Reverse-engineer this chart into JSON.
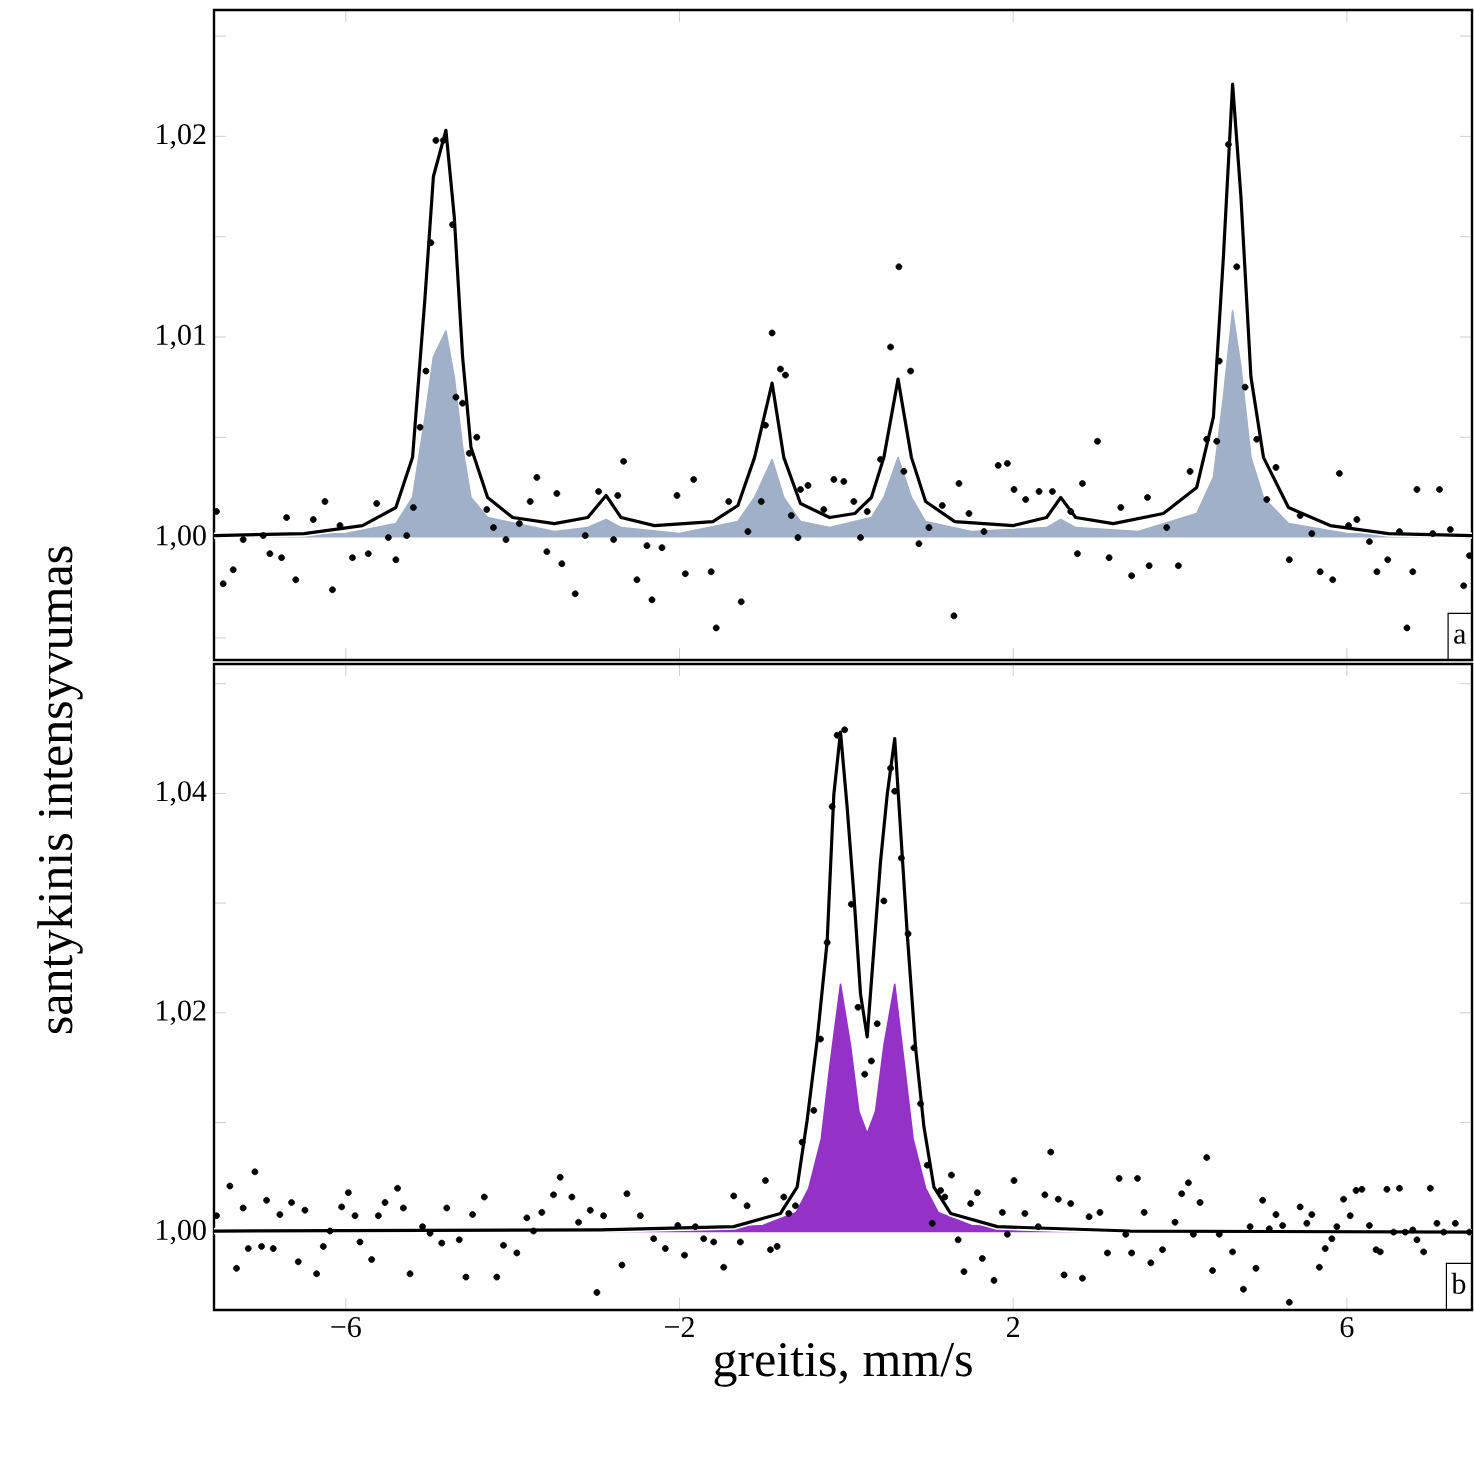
{
  "chart_data": [
    {
      "type": "line",
      "ylabel": "santykinis intensyvumas",
      "annotations": [
        "a"
      ],
      "tick_labels": "y",
      "xlim": [
        -7.58,
        7.5
      ],
      "ylim": [
        0.9939,
        1.0263
      ],
      "xticks": [
        {
          "value": -6,
          "label": null
        },
        {
          "value": -2,
          "label": null
        },
        {
          "value": 2,
          "label": null
        },
        {
          "value": 6,
          "label": null
        }
      ],
      "yticks": [
        {
          "value": 0.995,
          "label": null
        },
        {
          "value": 1.0,
          "label": "1,00"
        },
        {
          "value": 1.005,
          "label": null
        },
        {
          "value": 1.01,
          "label": "1,01"
        },
        {
          "value": 1.015,
          "label": null
        },
        {
          "value": 1.02,
          "label": "1,02"
        },
        {
          "value": 1.025,
          "label": null
        }
      ],
      "series": [
        {
          "type": "area",
          "color": "#9fb0c8",
          "x": [
            -7.58,
            -6,
            -5.4,
            -5.2,
            -5.05,
            -4.95,
            -4.8,
            -4.7,
            -4.6,
            -4.5,
            -4.3,
            -3.5,
            -3.1,
            -2.88,
            -2.7,
            -2.0,
            -1.3,
            -1.1,
            -0.89,
            -0.75,
            -0.55,
            -0.2,
            0.3,
            0.45,
            0.62,
            0.78,
            0.95,
            1.5,
            2.4,
            2.57,
            2.75,
            3.5,
            4.2,
            4.4,
            4.52,
            4.63,
            4.73,
            4.85,
            5.0,
            5.3,
            6.0,
            7.5
          ],
          "values": [
            1.0,
            1.0002,
            1.0007,
            1.002,
            1.006,
            1.009,
            1.0103,
            1.008,
            1.0045,
            1.002,
            1.001,
            1.0003,
            1.0005,
            1.0009,
            1.0005,
            1.0002,
            1.0008,
            1.002,
            1.0039,
            1.002,
            1.0008,
            1.0005,
            1.001,
            1.002,
            1.004,
            1.002,
            1.0008,
            1.0003,
            1.0005,
            1.0009,
            1.0005,
            1.0003,
            1.0012,
            1.003,
            1.007,
            1.0113,
            1.0085,
            1.004,
            1.002,
            1.0007,
            1.0002,
            1.0
          ]
        },
        {
          "color": "#000000",
          "x": [
            -7.58,
            -6.5,
            -5.8,
            -5.4,
            -5.2,
            -5.05,
            -4.95,
            -4.8,
            -4.7,
            -4.6,
            -4.5,
            -4.3,
            -4.0,
            -3.5,
            -3.1,
            -2.88,
            -2.7,
            -2.3,
            -1.6,
            -1.3,
            -1.1,
            -0.89,
            -0.75,
            -0.55,
            -0.2,
            0.1,
            0.3,
            0.45,
            0.62,
            0.78,
            0.95,
            1.3,
            2.0,
            2.4,
            2.57,
            2.75,
            3.2,
            3.8,
            4.2,
            4.4,
            4.52,
            4.63,
            4.73,
            4.85,
            5.0,
            5.3,
            5.8,
            6.5,
            7.5
          ],
          "values": [
            1.0001,
            1.0002,
            1.0006,
            1.0015,
            1.004,
            1.012,
            1.018,
            1.0203,
            1.016,
            1.009,
            1.0045,
            1.002,
            1.001,
            1.0007,
            1.001,
            1.0021,
            1.001,
            1.0006,
            1.0008,
            1.0016,
            1.004,
            1.0077,
            1.004,
            1.0017,
            1.001,
            1.0012,
            1.002,
            1.004,
            1.0079,
            1.004,
            1.0018,
            1.0008,
            1.0006,
            1.001,
            1.002,
            1.001,
            1.0007,
            1.0012,
            1.0025,
            1.006,
            1.014,
            1.0226,
            1.017,
            1.008,
            1.004,
            1.0015,
            1.0006,
            1.0002,
            1.0001
          ]
        },
        {
          "type": "scatter",
          "marker": "circle",
          "color": "#000000",
          "x": [
            -7.55,
            -7.47,
            -7.35,
            -7.23,
            -6.99,
            -6.91,
            -6.77,
            -6.71,
            -6.6,
            -6.39,
            -6.25,
            -6.16,
            -6.07,
            -5.92,
            -5.73,
            -5.63,
            -5.49,
            -5.4,
            -5.27,
            -5.19,
            -5.11,
            -5.04,
            -4.98,
            -4.92,
            -4.83,
            -4.72,
            -4.68,
            -4.6,
            -4.52,
            -4.43,
            -4.31,
            -4.23,
            -4.08,
            -3.92,
            -3.79,
            -3.71,
            -3.59,
            -3.47,
            -3.41,
            -3.25,
            -3.13,
            -2.97,
            -2.79,
            -2.74,
            -2.67,
            -2.51,
            -2.39,
            -2.33,
            -2.21,
            -2.03,
            -1.93,
            -1.83,
            -1.62,
            -1.56,
            -1.41,
            -1.26,
            -1.18,
            -1.02,
            -0.97,
            -0.89,
            -0.79,
            -0.73,
            -0.66,
            -0.58,
            -0.55,
            -0.46,
            -0.27,
            -0.15,
            -0.03,
            0.09,
            0.17,
            0.25,
            0.41,
            0.53,
            0.63,
            0.69,
            0.77,
            0.87,
            0.99,
            1.15,
            1.29,
            1.35,
            1.47,
            1.65,
            1.82,
            1.93,
            2.01,
            2.15,
            2.31,
            2.47,
            2.69,
            2.77,
            2.83,
            3.01,
            3.15,
            3.29,
            3.42,
            3.61,
            3.63,
            3.84,
            3.98,
            4.12,
            4.32,
            4.44,
            4.47,
            4.58,
            4.68,
            4.78,
            4.92,
            5.04,
            5.15,
            5.31,
            5.44,
            5.58,
            5.68,
            5.83,
            5.91,
            6.02,
            6.12,
            6.27,
            6.36,
            6.49,
            6.63,
            6.72,
            6.79,
            6.84,
            7.03,
            7.11,
            7.24,
            7.4,
            7.47
          ],
          "values": [
            1.0013,
            0.9977,
            0.9984,
            0.9999,
            1.0001,
            0.9992,
            0.999,
            1.001,
            0.9979,
            1.0009,
            1.0018,
            0.9974,
            1.0006,
            0.999,
            0.9992,
            1.0017,
            1.0,
            0.9989,
            1.0001,
            1.0015,
            1.0055,
            1.0083,
            1.0147,
            1.0198,
            1.0198,
            1.0156,
            1.007,
            1.0067,
            1.0042,
            1.005,
            1.0014,
            1.0005,
            0.9999,
            1.0007,
            1.0018,
            1.003,
            0.9993,
            1.0022,
            0.9987,
            0.9972,
            1.0001,
            1.0023,
            0.9999,
            1.0021,
            1.0038,
            0.9979,
            0.9996,
            0.9969,
            0.9995,
            1.0021,
            0.9982,
            1.0029,
            0.9983,
            0.9955,
            1.0018,
            0.9968,
            1.0003,
            1.0018,
            1.0056,
            1.0102,
            1.0084,
            1.0081,
            1.0011,
            1.0,
            1.0024,
            1.0026,
            1.0014,
            1.0029,
            1.0028,
            1.0018,
            1.0,
            1.0013,
            1.0039,
            1.0095,
            1.0135,
            1.0033,
            1.0083,
            0.9997,
            1.0005,
            1.0016,
            0.9961,
            1.0027,
            1.0012,
            1.0003,
            1.0036,
            1.0037,
            1.0024,
            1.0019,
            1.0023,
            1.0023,
            1.0013,
            0.9992,
            1.0027,
            1.0048,
            0.999,
            1.0015,
            0.9981,
            1.002,
            0.9986,
            1.0005,
            0.9986,
            1.0033,
            1.0049,
            1.0048,
            1.0088,
            1.0196,
            1.0135,
            1.0075,
            1.0049,
            1.0019,
            1.0035,
            0.9989,
            1.0011,
            1.0002,
            0.9983,
            0.9979,
            1.0032,
            1.0006,
            1.0009,
            0.9998,
            0.9983,
            0.9989,
            1.0003,
            0.9955,
            0.9983,
            1.0024,
            1.0002,
            1.0024,
            1.0004,
            0.9976,
            0.9991
          ]
        }
      ]
    },
    {
      "type": "line",
      "xlabel": "greitis, mm/s",
      "annotations": [
        "b"
      ],
      "xlim": [
        -7.58,
        7.5
      ],
      "ylim": [
        0.9929,
        1.0518
      ],
      "xticks": [
        {
          "value": -6,
          "label": "−6"
        },
        {
          "value": -2,
          "label": "−2"
        },
        2,
        6
      ],
      "yticks": [
        {
          "value": 1.0,
          "label": "1,00"
        },
        {
          "value": 1.01,
          "label": null
        },
        {
          "value": 1.02,
          "label": "1,02"
        },
        {
          "value": 1.03,
          "label": null
        },
        {
          "value": 1.04,
          "label": "1,04"
        },
        {
          "value": 1.05,
          "label": null
        }
      ],
      "series": [
        {
          "type": "area",
          "color": "#9432c8",
          "x": [
            -7.58,
            -2.0,
            -1.0,
            -0.6,
            -0.45,
            -0.3,
            -0.2,
            -0.07,
            0.05,
            0.15,
            0.25,
            0.35,
            0.45,
            0.58,
            0.7,
            0.8,
            0.95,
            1.1,
            1.5,
            2.5,
            7.5
          ],
          "values": [
            1.0,
            1.0002,
            1.0006,
            1.0018,
            1.004,
            1.0085,
            1.015,
            1.0226,
            1.017,
            1.011,
            1.009,
            1.011,
            1.017,
            1.0226,
            1.015,
            1.0085,
            1.004,
            1.0018,
            1.0006,
            1.0002,
            1.0
          ]
        },
        {
          "color": "#000000",
          "x": [
            -7.58,
            -2.95,
            -1.35,
            -0.79,
            -0.59,
            -0.47,
            -0.35,
            -0.23,
            -0.15,
            -0.07,
            0.01,
            0.09,
            0.17,
            0.25,
            0.41,
            0.49,
            0.58,
            0.73,
            0.83,
            0.93,
            1.05,
            1.25,
            1.81,
            3.4,
            7.5
          ],
          "values": [
            1.0001,
            1.0002,
            1.0005,
            1.0017,
            1.0041,
            1.0102,
            1.0175,
            1.0265,
            1.0399,
            1.0456,
            1.0387,
            1.0308,
            1.0217,
            1.0178,
            1.0338,
            1.0399,
            1.045,
            1.0272,
            1.0168,
            1.0096,
            1.0041,
            1.0017,
            1.0005,
            1.0001,
            1.0
          ]
        },
        {
          "type": "scatter",
          "marker": "circle",
          "color": "#000000",
          "x": [
            -7.55,
            -7.39,
            -7.31,
            -7.23,
            -7.17,
            -7.09,
            -7.01,
            -6.95,
            -6.87,
            -6.79,
            -6.65,
            -6.57,
            -6.49,
            -6.35,
            -6.27,
            -6.19,
            -6.05,
            -5.97,
            -5.89,
            -5.83,
            -5.69,
            -5.61,
            -5.53,
            -5.38,
            -5.31,
            -5.23,
            -5.08,
            -4.99,
            -4.85,
            -4.79,
            -4.64,
            -4.56,
            -4.48,
            -4.34,
            -4.19,
            -4.11,
            -3.95,
            -3.83,
            -3.75,
            -3.65,
            -3.51,
            -3.43,
            -3.29,
            -3.21,
            -3.07,
            -2.99,
            -2.91,
            -2.69,
            -2.63,
            -2.47,
            -2.31,
            -2.17,
            -2.02,
            -1.94,
            -1.81,
            -1.71,
            -1.59,
            -1.47,
            -1.35,
            -1.27,
            -1.19,
            -0.97,
            -0.91,
            -0.83,
            -0.75,
            -0.69,
            -0.61,
            -0.53,
            -0.39,
            -0.31,
            -0.23,
            -0.17,
            -0.11,
            -0.02,
            0.06,
            0.14,
            0.22,
            0.3,
            0.37,
            0.45,
            0.53,
            0.58,
            0.66,
            0.74,
            0.81,
            0.89,
            0.97,
            1.03,
            1.13,
            1.18,
            1.26,
            1.34,
            1.41,
            1.49,
            1.57,
            1.63,
            1.77,
            1.87,
            1.93,
            2.01,
            2.14,
            2.3,
            2.38,
            2.45,
            2.54,
            2.61,
            2.69,
            2.83,
            2.91,
            3.04,
            3.13,
            3.27,
            3.35,
            3.42,
            3.49,
            3.57,
            3.65,
            3.79,
            3.94,
            4.02,
            4.1,
            4.16,
            4.24,
            4.32,
            4.39,
            4.47,
            4.63,
            4.76,
            4.84,
            4.91,
            4.99,
            5.07,
            5.15,
            5.23,
            5.31,
            5.44,
            5.52,
            5.58,
            5.67,
            5.74,
            5.82,
            5.88,
            5.96,
            6.04,
            6.11,
            6.18,
            6.27,
            6.35,
            6.4,
            6.48,
            6.56,
            6.63,
            6.7,
            6.79,
            6.84,
            6.92,
            7.0,
            7.08,
            7.16,
            7.3,
            7.47
          ],
          "values": [
            1.0015,
            1.0042,
            0.9967,
            1.0022,
            0.9985,
            1.0055,
            0.9987,
            1.0029,
            0.9985,
            1.0016,
            1.0027,
            0.9973,
            1.002,
            0.9962,
            0.9987,
            1.0001,
            1.0023,
            1.0036,
            1.0015,
            0.9991,
            0.9975,
            1.0015,
            1.0027,
            1.004,
            1.0022,
            0.9962,
            1.0005,
            0.9999,
            0.999,
            1.0022,
            0.9993,
            0.9959,
            1.0016,
            1.0032,
            0.9959,
            0.9988,
            0.9981,
            1.0013,
            1.0001,
            1.0018,
            1.0034,
            1.005,
            1.0032,
            1.0009,
            1.002,
            0.9945,
            1.0015,
            0.997,
            1.0035,
            1.0015,
            0.9994,
            0.9985,
            1.0006,
            0.9979,
            1.0005,
            0.9994,
            0.9991,
            0.9968,
            1.0033,
            0.9991,
            1.0024,
            1.0047,
            0.9984,
            0.9987,
            1.0032,
            1.0017,
            1.0024,
            1.0082,
            1.0111,
            1.0176,
            1.0264,
            1.0388,
            1.0453,
            1.0458,
            1.0299,
            1.0205,
            1.0144,
            1.0156,
            1.019,
            1.0302,
            1.0423,
            1.0402,
            1.0341,
            1.0272,
            1.0168,
            1.0117,
            1.0061,
            1.0008,
            1.0038,
            1.0032,
            1.0052,
            0.9993,
            0.9964,
            1.0026,
            1.0036,
            0.9976,
            0.9956,
            1.0018,
            0.9998,
            1.0047,
            1.0017,
            1.0005,
            1.0034,
            1.0073,
            1.003,
            0.9961,
            1.0026,
            0.9958,
            1.0014,
            1.0018,
            0.9981,
            1.0049,
            0.9998,
            0.9981,
            1.0049,
            1.0018,
            0.9972,
            0.9984,
            1.0009,
            1.0035,
            1.0045,
            0.9998,
            1.0027,
            1.0068,
            0.9965,
            0.9998,
            0.9982,
            0.9948,
            1.0005,
            0.9967,
            1.0029,
            1.0003,
            1.0016,
            1.0006,
            0.9936,
            1.0023,
            1.0008,
            1.0016,
            0.9968,
            0.9985,
            0.9994,
            1.0005,
            1.003,
            1.0015,
            1.0038,
            1.0039,
            1.0006,
            0.9984,
            0.9982,
            1.0039,
            1.0,
            1.004,
            1.0,
            1.0002,
            0.9993,
            0.9982,
            1.004,
            1.0008,
            1.0,
            1.0008,
            1.0
          ]
        }
      ]
    }
  ]
}
